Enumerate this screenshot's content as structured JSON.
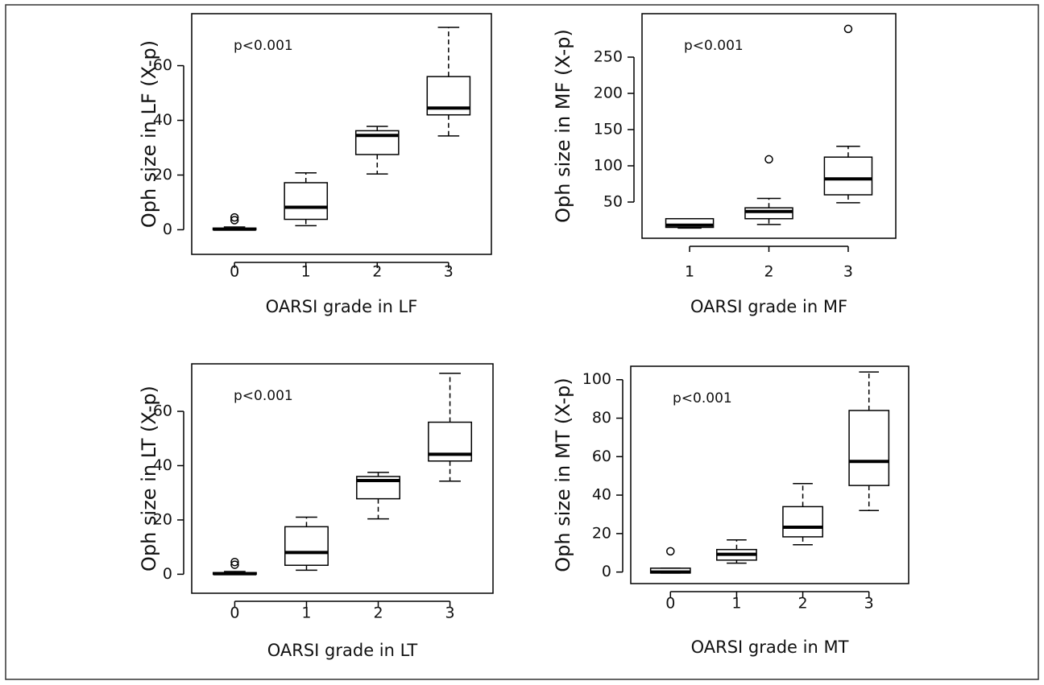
{
  "chart_data": [
    {
      "type": "box",
      "annotation": "p<0.001",
      "xlabel": "OARSI grade in LF",
      "ylabel": "Oph size in LF (X-p)",
      "categories": [
        "0",
        "1",
        "2",
        "3"
      ],
      "ylim": [
        -9,
        79
      ],
      "yticks": [
        0,
        20,
        40,
        60
      ],
      "color": "#000000",
      "fill": "#ffffff",
      "boxes": [
        {
          "low": 0,
          "q1": 0,
          "median": 0.2,
          "q3": 0.6,
          "high": 1,
          "outliers": [
            3.5,
            4.5
          ]
        },
        {
          "low": 1.5,
          "q1": 3.8,
          "median": 8.2,
          "q3": 17.2,
          "high": 20.8,
          "outliers": []
        },
        {
          "low": 20.4,
          "q1": 27.5,
          "median": 34.5,
          "q3": 36.2,
          "high": 37.8,
          "outliers": []
        },
        {
          "low": 34.3,
          "q1": 42,
          "median": 44.5,
          "q3": 56,
          "high": 74,
          "outliers": []
        }
      ]
    },
    {
      "type": "box",
      "annotation": "p<0.001",
      "xlabel": "OARSI grade in MF",
      "ylabel": "Oph size in MF (X-p)",
      "categories": [
        "1",
        "2",
        "3"
      ],
      "ylim": [
        0,
        310
      ],
      "yticks": [
        50,
        100,
        150,
        200,
        250
      ],
      "color": "#000000",
      "fill": "#ffffff",
      "boxes": [
        {
          "low": 14,
          "q1": 15,
          "median": 18,
          "q3": 27,
          "high": 27,
          "outliers": []
        },
        {
          "low": 19,
          "q1": 27,
          "median": 37,
          "q3": 42,
          "high": 55,
          "outliers": [
            109
          ]
        },
        {
          "low": 49,
          "q1": 60,
          "median": 82,
          "q3": 112,
          "high": 127,
          "outliers": [
            289
          ]
        }
      ]
    },
    {
      "type": "box",
      "annotation": "p<0.001",
      "xlabel": "OARSI grade in LT",
      "ylabel": "Oph size in LT (X-p)",
      "categories": [
        "0",
        "1",
        "2",
        "3"
      ],
      "ylim": [
        -7,
        77.5
      ],
      "yticks": [
        0,
        20,
        40,
        60
      ],
      "color": "#000000",
      "fill": "#ffffff",
      "boxes": [
        {
          "low": 0,
          "q1": 0,
          "median": 0.2,
          "q3": 0.6,
          "high": 1,
          "outliers": [
            3.5,
            4.5
          ]
        },
        {
          "low": 1.5,
          "q1": 3.3,
          "median": 8,
          "q3": 17.5,
          "high": 21,
          "outliers": []
        },
        {
          "low": 20.4,
          "q1": 27.8,
          "median": 34.5,
          "q3": 36,
          "high": 37.5,
          "outliers": []
        },
        {
          "low": 34.3,
          "q1": 41.7,
          "median": 44.2,
          "q3": 56,
          "high": 74,
          "outliers": []
        }
      ]
    },
    {
      "type": "box",
      "annotation": "p<0.001",
      "xlabel": "OARSI grade in MT",
      "ylabel": "Oph size in MT (X-p)",
      "categories": [
        "0",
        "1",
        "2",
        "3"
      ],
      "ylim": [
        -6,
        107
      ],
      "yticks": [
        0,
        20,
        40,
        60,
        80,
        100
      ],
      "color": "#000000",
      "fill": "#ffffff",
      "boxes": [
        {
          "low": -0.5,
          "q1": -0.5,
          "median": 0,
          "q3": 2,
          "high": 2,
          "outliers": [
            10.8
          ]
        },
        {
          "low": 4.6,
          "q1": 6.2,
          "median": 9.2,
          "q3": 11.7,
          "high": 16.7,
          "outliers": []
        },
        {
          "low": 14.2,
          "q1": 18.3,
          "median": 23.3,
          "q3": 34,
          "high": 46,
          "outliers": []
        },
        {
          "low": 32,
          "q1": 45,
          "median": 57.5,
          "q3": 84,
          "high": 104,
          "outliers": []
        }
      ]
    }
  ]
}
